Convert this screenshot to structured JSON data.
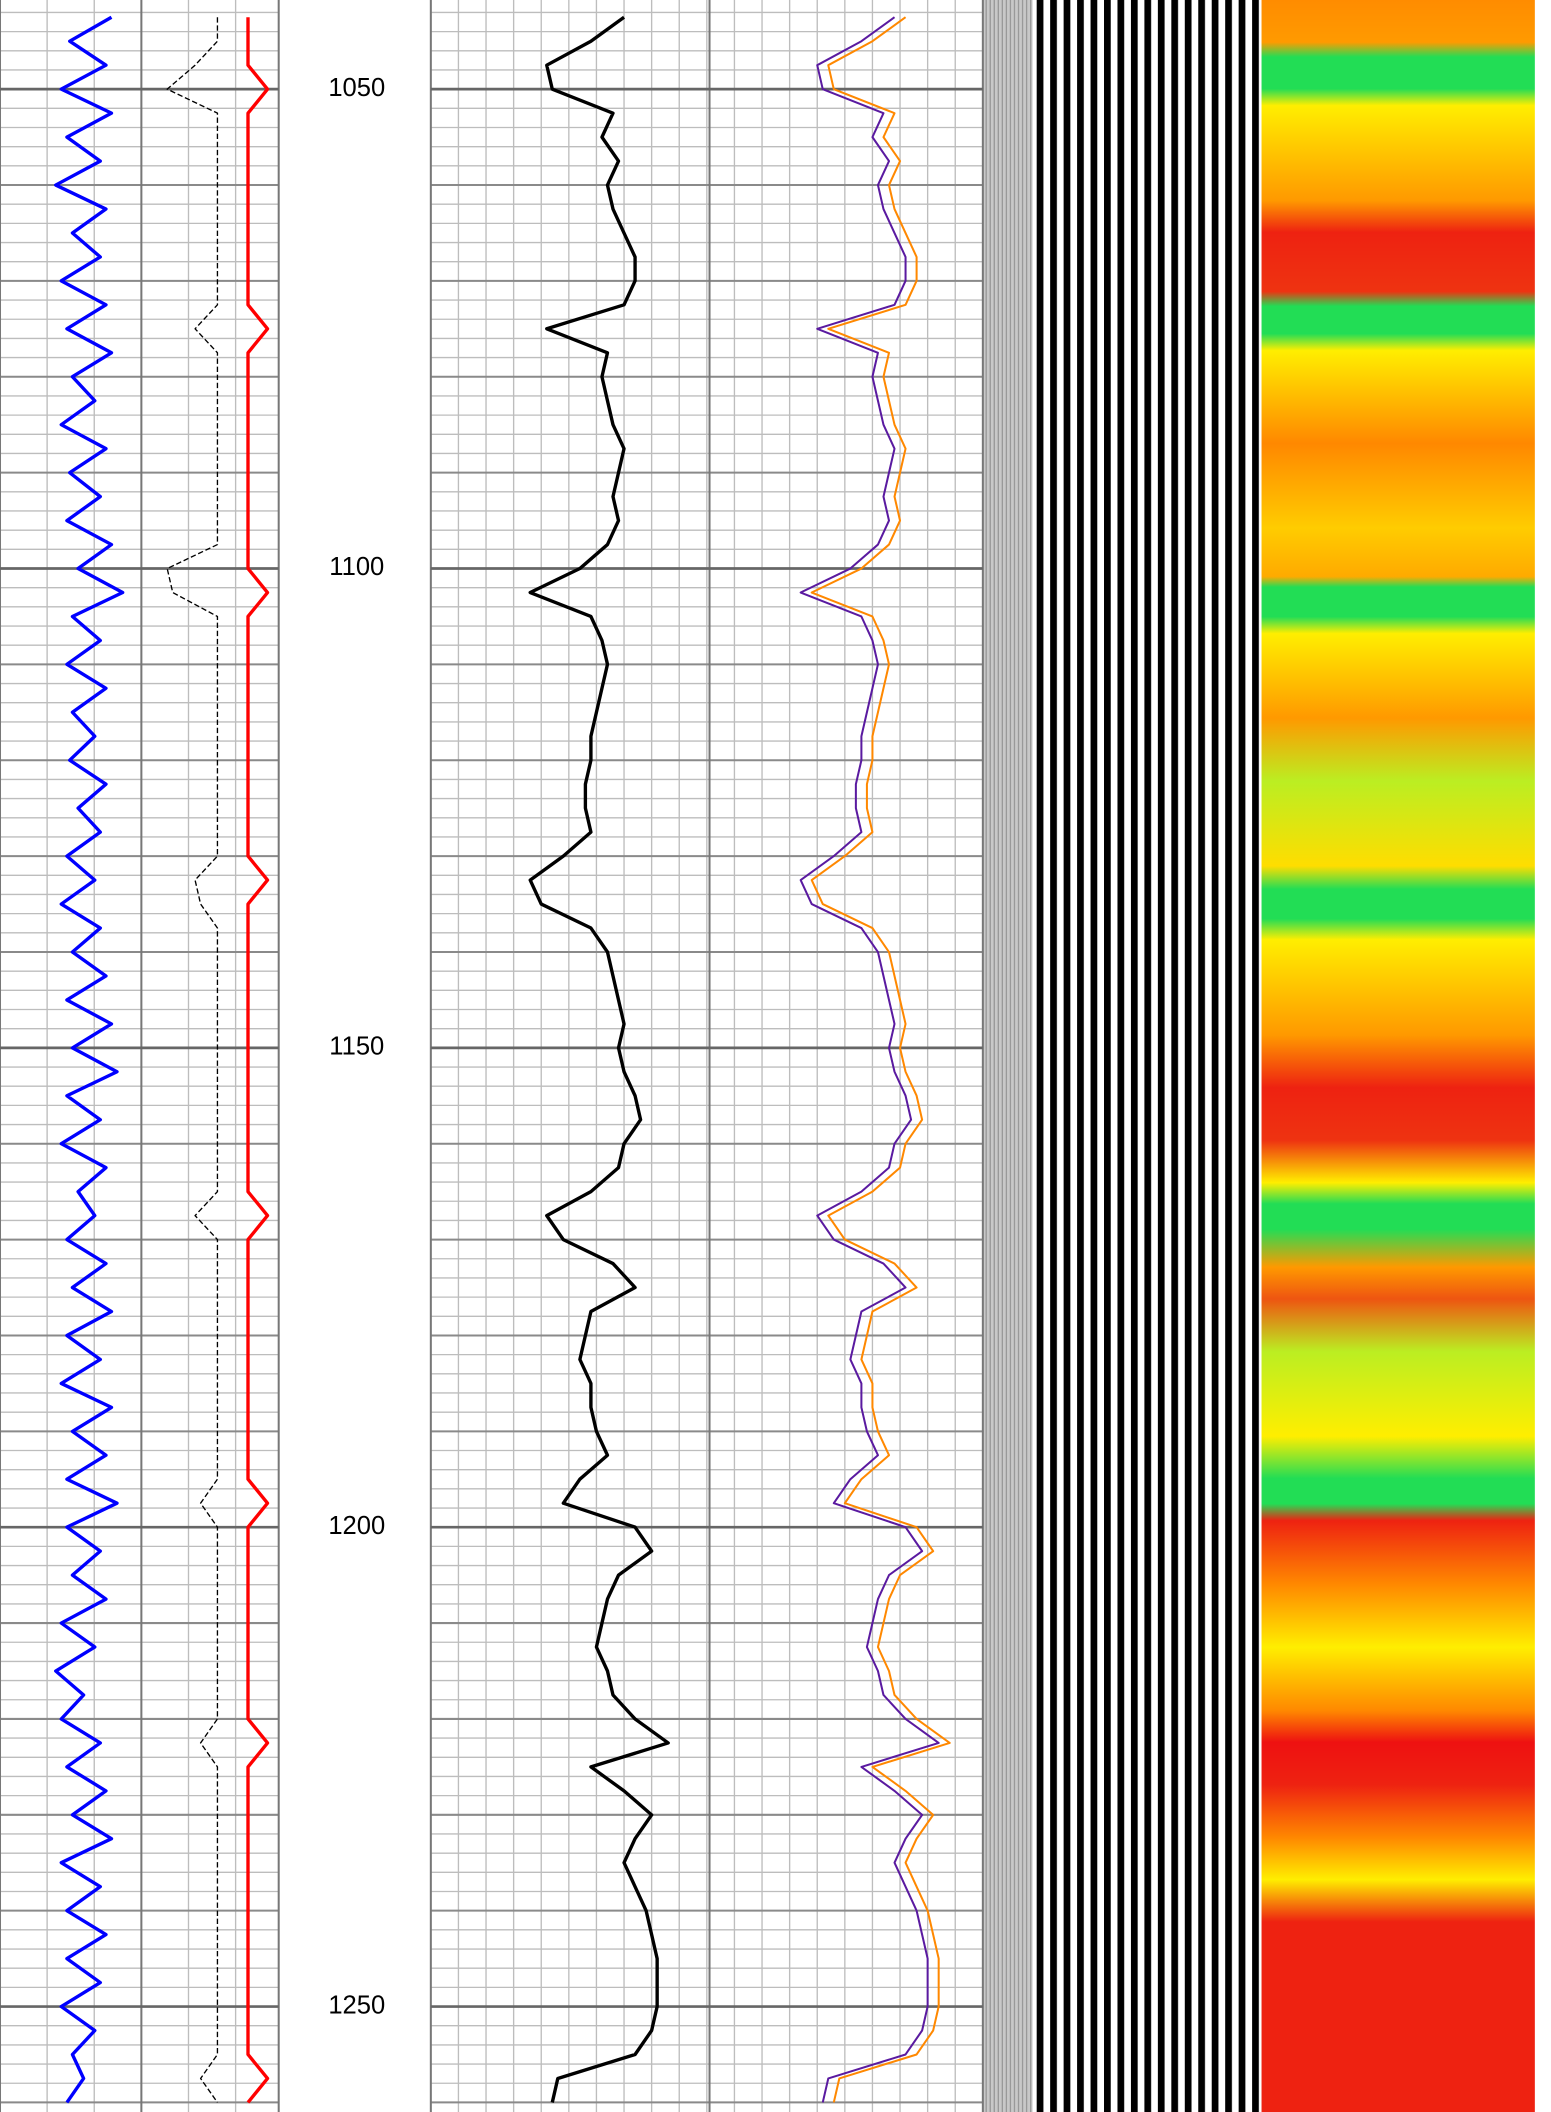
{
  "chart_data": {
    "type": "well-log",
    "ylim": [
      1040.7,
      1261.0
    ],
    "yticks": [
      1050,
      1100,
      1150,
      1200,
      1250
    ],
    "depth": [
      1042.5,
      1045,
      1047.5,
      1050,
      1052.5,
      1055,
      1057.5,
      1060,
      1062.5,
      1065,
      1067.5,
      1070,
      1072.5,
      1075,
      1077.5,
      1080,
      1082.5,
      1085,
      1087.5,
      1090,
      1092.5,
      1095,
      1097.5,
      1100,
      1102.5,
      1105,
      1107.5,
      1110,
      1112.5,
      1115,
      1117.5,
      1120,
      1122.5,
      1125,
      1127.5,
      1130,
      1132.5,
      1135,
      1137.5,
      1140,
      1142.5,
      1145,
      1147.5,
      1150,
      1152.5,
      1155,
      1157.5,
      1160,
      1162.5,
      1165,
      1167.5,
      1170,
      1172.5,
      1175,
      1177.5,
      1180,
      1182.5,
      1185,
      1187.5,
      1190,
      1192.5,
      1195,
      1197.5,
      1200,
      1202.5,
      1205,
      1207.5,
      1210,
      1212.5,
      1215,
      1217.5,
      1220,
      1222.5,
      1225,
      1227.5,
      1230,
      1232.5,
      1235,
      1237.5,
      1240,
      1242.5,
      1245,
      1247.5,
      1250,
      1252.5,
      1255,
      1257.5,
      1260
    ],
    "tracks": [
      {
        "xlim": [
          0,
          100
        ],
        "series": [
          {
            "color": "#0000ff",
            "width": 2.5,
            "values": [
              40,
              25,
              38,
              22,
              40,
              24,
              36,
              20,
              38,
              26,
              36,
              22,
              38,
              24,
              40,
              26,
              34,
              22,
              38,
              25,
              36,
              24,
              40,
              28,
              44,
              26,
              36,
              24,
              38,
              26,
              34,
              25,
              38,
              28,
              36,
              24,
              34,
              22,
              36,
              26,
              38,
              24,
              40,
              26,
              42,
              24,
              36,
              22,
              38,
              28,
              34,
              24,
              38,
              26,
              40,
              24,
              36,
              22,
              40,
              26,
              38,
              24,
              42,
              24,
              36,
              26,
              38,
              22,
              34,
              20,
              30,
              22,
              36,
              24,
              38,
              26,
              40,
              22,
              36,
              24,
              38,
              24,
              36,
              22,
              34,
              26,
              30,
              24
            ]
          },
          {
            "color": "#000000",
            "width": 1,
            "dash": true,
            "values": [
              78,
              78,
              70,
              60,
              78,
              78,
              78,
              78,
              78,
              78,
              78,
              78,
              78,
              70,
              78,
              78,
              78,
              78,
              78,
              78,
              78,
              78,
              78,
              60,
              62,
              78,
              78,
              78,
              78,
              78,
              78,
              78,
              78,
              78,
              78,
              78,
              70,
              72,
              78,
              78,
              78,
              78,
              78,
              78,
              78,
              78,
              78,
              78,
              78,
              78,
              70,
              78,
              78,
              78,
              78,
              78,
              78,
              78,
              78,
              78,
              78,
              78,
              72,
              78,
              78,
              78,
              78,
              78,
              78,
              78,
              78,
              78,
              72,
              78,
              78,
              78,
              78,
              78,
              78,
              78,
              78,
              78,
              78,
              78,
              78,
              78,
              72,
              78
            ]
          },
          {
            "color": "#ff0000",
            "width": 2.5,
            "values": [
              89,
              89,
              89,
              96,
              89,
              89,
              89,
              89,
              89,
              89,
              89,
              89,
              89,
              96,
              89,
              89,
              89,
              89,
              89,
              89,
              89,
              89,
              89,
              89,
              96,
              89,
              89,
              89,
              89,
              89,
              89,
              89,
              89,
              89,
              89,
              89,
              96,
              89,
              89,
              89,
              89,
              89,
              89,
              89,
              89,
              89,
              89,
              89,
              89,
              89,
              96,
              89,
              89,
              89,
              89,
              89,
              89,
              89,
              89,
              89,
              89,
              89,
              96,
              89,
              89,
              89,
              89,
              89,
              89,
              89,
              89,
              89,
              96,
              89,
              89,
              89,
              89,
              89,
              89,
              89,
              89,
              89,
              89,
              89,
              89,
              89,
              96,
              89
            ]
          }
        ]
      },
      {
        "xlim": [
          0,
          100
        ],
        "series": [
          {
            "color": "#000000",
            "width": 2.5,
            "values": [
              35,
              29,
              21,
              22,
              33,
              31,
              34,
              32,
              33,
              35,
              37,
              37,
              35,
              21,
              32,
              31,
              32,
              33,
              35,
              34,
              33,
              34,
              32,
              27,
              18,
              29,
              31,
              32,
              31,
              30,
              29,
              29,
              28,
              28,
              29,
              24,
              18,
              20,
              29,
              32,
              33,
              34,
              35,
              34,
              35,
              37,
              38,
              35,
              34,
              29,
              21,
              24,
              33,
              37,
              29,
              28,
              27,
              29,
              29,
              30,
              32,
              27,
              24,
              37,
              40,
              34,
              32,
              31,
              30,
              32,
              33,
              37,
              43,
              29,
              35,
              40,
              37,
              35,
              37,
              39,
              40,
              41,
              41,
              41,
              40,
              37,
              23,
              22
            ]
          },
          {
            "color": "#ff8800",
            "width": 1.5,
            "values": [
              86,
              80,
              72,
              73,
              84,
              82,
              85,
              83,
              84,
              86,
              88,
              88,
              86,
              72,
              83,
              82,
              83,
              84,
              86,
              85,
              84,
              85,
              83,
              78,
              69,
              80,
              82,
              83,
              82,
              81,
              80,
              80,
              79,
              79,
              80,
              75,
              69,
              71,
              80,
              83,
              84,
              85,
              86,
              85,
              86,
              88,
              89,
              86,
              85,
              80,
              72,
              75,
              84,
              88,
              80,
              79,
              78,
              80,
              80,
              81,
              83,
              78,
              75,
              88,
              91,
              85,
              83,
              82,
              81,
              83,
              84,
              88,
              94,
              80,
              86,
              91,
              88,
              86,
              88,
              90,
              91,
              92,
              92,
              92,
              91,
              88,
              74,
              73
            ]
          },
          {
            "color": "#5a1aa0",
            "width": 1.5,
            "values": [
              84,
              78,
              70,
              71,
              82,
              80,
              83,
              81,
              82,
              84,
              86,
              86,
              84,
              70,
              81,
              80,
              81,
              82,
              84,
              83,
              82,
              83,
              81,
              76,
              67,
              78,
              80,
              81,
              80,
              79,
              78,
              78,
              77,
              77,
              78,
              73,
              67,
              69,
              78,
              81,
              82,
              83,
              84,
              83,
              84,
              86,
              87,
              84,
              83,
              78,
              70,
              73,
              82,
              86,
              78,
              77,
              76,
              78,
              78,
              79,
              81,
              76,
              73,
              86,
              89,
              83,
              81,
              80,
              79,
              81,
              82,
              86,
              92,
              78,
              84,
              89,
              86,
              84,
              86,
              88,
              89,
              90,
              90,
              90,
              89,
              86,
              72,
              71
            ]
          }
        ]
      }
    ]
  }
}
